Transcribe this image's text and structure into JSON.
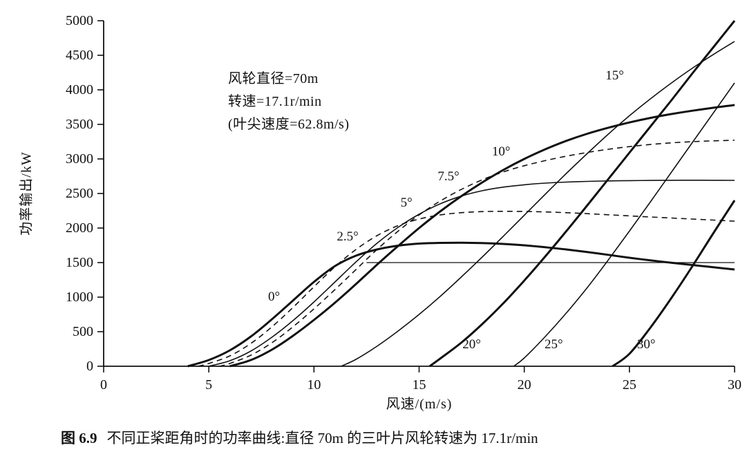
{
  "figure": {
    "caption": {
      "label": "图 6.9",
      "text": "不同正桨距角时的功率曲线:直径 70m 的三叶片风轮转速为 17.1r/min"
    }
  },
  "chart_data": {
    "type": "line",
    "title": "",
    "xlabel": "风速/(m/s)",
    "ylabel": "功率输出/kW",
    "xlim": [
      0,
      30
    ],
    "ylim": [
      0,
      5000
    ],
    "x_ticks": [
      0,
      5,
      10,
      15,
      20,
      25,
      30
    ],
    "y_ticks": [
      0,
      500,
      1000,
      1500,
      2000,
      2500,
      3000,
      3500,
      4000,
      4500,
      5000
    ],
    "grid": false,
    "legend": "none",
    "annotations": [
      "风轮直径=70m",
      "转速=17.1r/min",
      "(叶尖速度=62.8m/s)"
    ],
    "curve_labels": [
      {
        "text": "0°",
        "x": 8.1,
        "y": 950
      },
      {
        "text": "2.5°",
        "x": 11.6,
        "y": 1820
      },
      {
        "text": "5°",
        "x": 14.4,
        "y": 2310
      },
      {
        "text": "7.5°",
        "x": 16.4,
        "y": 2690
      },
      {
        "text": "10°",
        "x": 18.9,
        "y": 3050
      },
      {
        "text": "15°",
        "x": 24.3,
        "y": 4150
      },
      {
        "text": "20°",
        "x": 17.5,
        "y": 260
      },
      {
        "text": "25°",
        "x": 21.4,
        "y": 260
      },
      {
        "text": "30°",
        "x": 25.8,
        "y": 260
      }
    ],
    "series": [
      {
        "name": "0°",
        "id": "pitch-0deg",
        "line": "solid",
        "weight": "thick",
        "points": [
          [
            4,
            0
          ],
          [
            5,
            90
          ],
          [
            6,
            230
          ],
          [
            7,
            430
          ],
          [
            8,
            680
          ],
          [
            9,
            950
          ],
          [
            10,
            1220
          ],
          [
            11,
            1450
          ],
          [
            12,
            1600
          ],
          [
            13,
            1690
          ],
          [
            14,
            1745
          ],
          [
            15,
            1775
          ],
          [
            16,
            1785
          ],
          [
            17,
            1788
          ],
          [
            18,
            1782
          ],
          [
            19,
            1770
          ],
          [
            20,
            1750
          ],
          [
            21,
            1722
          ],
          [
            22,
            1690
          ],
          [
            23,
            1652
          ],
          [
            24,
            1612
          ],
          [
            25,
            1570
          ],
          [
            26,
            1532
          ],
          [
            27,
            1498
          ],
          [
            28,
            1465
          ],
          [
            29,
            1432
          ],
          [
            30,
            1400
          ]
        ]
      },
      {
        "name": "2.5°",
        "id": "pitch-2-5deg",
        "line": "dashed",
        "weight": "thin",
        "points": [
          [
            4.5,
            0
          ],
          [
            5,
            40
          ],
          [
            6,
            150
          ],
          [
            7,
            330
          ],
          [
            8,
            570
          ],
          [
            9,
            850
          ],
          [
            10,
            1150
          ],
          [
            11,
            1440
          ],
          [
            12,
            1690
          ],
          [
            13,
            1890
          ],
          [
            14,
            2035
          ],
          [
            15,
            2130
          ],
          [
            16,
            2190
          ],
          [
            17,
            2222
          ],
          [
            18,
            2238
          ],
          [
            19,
            2242
          ],
          [
            20,
            2240
          ],
          [
            21,
            2233
          ],
          [
            22,
            2222
          ],
          [
            23,
            2208
          ],
          [
            24,
            2192
          ],
          [
            25,
            2176
          ],
          [
            26,
            2160
          ],
          [
            27,
            2145
          ],
          [
            28,
            2130
          ],
          [
            29,
            2115
          ],
          [
            30,
            2100
          ]
        ]
      },
      {
        "name": "5°",
        "id": "pitch-5deg",
        "line": "solid",
        "weight": "thin",
        "points": [
          [
            5,
            0
          ],
          [
            6,
            80
          ],
          [
            7,
            220
          ],
          [
            8,
            420
          ],
          [
            9,
            660
          ],
          [
            10,
            930
          ],
          [
            11,
            1220
          ],
          [
            12,
            1510
          ],
          [
            13,
            1780
          ],
          [
            14,
            2010
          ],
          [
            15,
            2200
          ],
          [
            16,
            2350
          ],
          [
            17,
            2462
          ],
          [
            18,
            2540
          ],
          [
            19,
            2592
          ],
          [
            20,
            2626
          ],
          [
            21,
            2650
          ],
          [
            22,
            2665
          ],
          [
            23,
            2675
          ],
          [
            24,
            2682
          ],
          [
            25,
            2686
          ],
          [
            26,
            2689
          ],
          [
            27,
            2691
          ],
          [
            28,
            2692
          ],
          [
            29,
            2691
          ],
          [
            30,
            2690
          ]
        ]
      },
      {
        "name": "7.5°",
        "id": "pitch-7-5deg",
        "line": "dashed",
        "weight": "thin",
        "points": [
          [
            5.5,
            0
          ],
          [
            6,
            40
          ],
          [
            7,
            160
          ],
          [
            8,
            340
          ],
          [
            9,
            570
          ],
          [
            10,
            830
          ],
          [
            11,
            1110
          ],
          [
            12,
            1400
          ],
          [
            13,
            1690
          ],
          [
            14,
            1955
          ],
          [
            15,
            2190
          ],
          [
            16,
            2390
          ],
          [
            17,
            2558
          ],
          [
            18,
            2698
          ],
          [
            19,
            2812
          ],
          [
            20,
            2902
          ],
          [
            21,
            2976
          ],
          [
            22,
            3040
          ],
          [
            23,
            3094
          ],
          [
            24,
            3140
          ],
          [
            25,
            3178
          ],
          [
            26,
            3209
          ],
          [
            27,
            3233
          ],
          [
            28,
            3250
          ],
          [
            29,
            3262
          ],
          [
            30,
            3270
          ]
        ]
      },
      {
        "name": "10°",
        "id": "pitch-10deg",
        "line": "solid",
        "weight": "thick",
        "points": [
          [
            6,
            0
          ],
          [
            7,
            90
          ],
          [
            8,
            240
          ],
          [
            9,
            440
          ],
          [
            10,
            670
          ],
          [
            11,
            920
          ],
          [
            12,
            1190
          ],
          [
            13,
            1470
          ],
          [
            14,
            1740
          ],
          [
            15,
            2000
          ],
          [
            16,
            2240
          ],
          [
            17,
            2460
          ],
          [
            18,
            2660
          ],
          [
            19,
            2840
          ],
          [
            20,
            3000
          ],
          [
            21,
            3140
          ],
          [
            22,
            3262
          ],
          [
            23,
            3365
          ],
          [
            24,
            3452
          ],
          [
            25,
            3528
          ],
          [
            26,
            3594
          ],
          [
            27,
            3650
          ],
          [
            28,
            3698
          ],
          [
            29,
            3741
          ],
          [
            30,
            3780
          ]
        ]
      },
      {
        "name": "15°",
        "id": "pitch-15deg",
        "line": "solid",
        "weight": "thin",
        "points": [
          [
            11.3,
            0
          ],
          [
            12,
            100
          ],
          [
            13,
            290
          ],
          [
            14,
            510
          ],
          [
            15,
            750
          ],
          [
            16,
            1010
          ],
          [
            17,
            1290
          ],
          [
            18,
            1580
          ],
          [
            19,
            1880
          ],
          [
            20,
            2185
          ],
          [
            21,
            2490
          ],
          [
            22,
            2790
          ],
          [
            23,
            3080
          ],
          [
            24,
            3360
          ],
          [
            25,
            3625
          ],
          [
            26,
            3870
          ],
          [
            27,
            4100
          ],
          [
            28,
            4315
          ],
          [
            29,
            4513
          ],
          [
            30,
            4700
          ]
        ]
      },
      {
        "name": "20°",
        "id": "pitch-20deg",
        "line": "solid",
        "weight": "thick",
        "points": [
          [
            15.5,
            0
          ],
          [
            16,
            110
          ],
          [
            17,
            340
          ],
          [
            18,
            610
          ],
          [
            19,
            910
          ],
          [
            20,
            1240
          ],
          [
            21,
            1590
          ],
          [
            22,
            1955
          ],
          [
            23,
            2330
          ],
          [
            24,
            2710
          ],
          [
            25,
            3090
          ],
          [
            26,
            3470
          ],
          [
            27,
            3850
          ],
          [
            28,
            4240
          ],
          [
            29,
            4620
          ],
          [
            30,
            5000
          ]
        ]
      },
      {
        "name": "25°",
        "id": "pitch-25deg",
        "line": "solid",
        "weight": "thin",
        "points": [
          [
            19.5,
            0
          ],
          [
            20,
            120
          ],
          [
            21,
            430
          ],
          [
            22,
            770
          ],
          [
            23,
            1140
          ],
          [
            24,
            1540
          ],
          [
            25,
            1955
          ],
          [
            26,
            2380
          ],
          [
            27,
            2810
          ],
          [
            28,
            3240
          ],
          [
            29,
            3670
          ],
          [
            30,
            4100
          ]
        ]
      },
      {
        "name": "30°",
        "id": "pitch-30deg",
        "line": "solid",
        "weight": "thick",
        "points": [
          [
            24.2,
            0
          ],
          [
            25,
            180
          ],
          [
            26,
            560
          ],
          [
            27,
            990
          ],
          [
            28,
            1450
          ],
          [
            29,
            1930
          ],
          [
            30,
            2400
          ]
        ]
      },
      {
        "name": "额定功率线",
        "id": "rated-power-line",
        "line": "solid",
        "weight": "hairline",
        "points": [
          [
            12.5,
            1500
          ],
          [
            30,
            1500
          ]
        ]
      }
    ]
  }
}
